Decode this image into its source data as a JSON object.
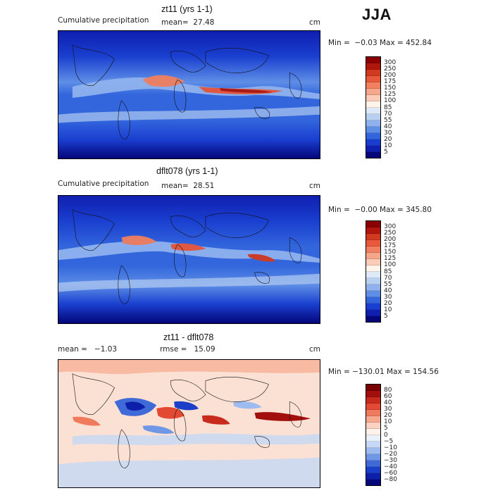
{
  "season": "JJA",
  "panels": [
    {
      "title": "zt11 (yrs 1-1)",
      "subtitle": "Cumulative precipitation",
      "stat1": "mean=  27.48",
      "stat2": "",
      "unit": "cm",
      "minmax": "Min =  −0.03 Max = 452.84",
      "colorbar": {
        "labels": [
          "300",
          "250",
          "200",
          "175",
          "150",
          "125",
          "100",
          "85",
          "70",
          "55",
          "40",
          "30",
          "20",
          "10",
          "5"
        ],
        "colors": [
          "#8b0000",
          "#b0170c",
          "#d23a20",
          "#e8583a",
          "#f08060",
          "#f6a68a",
          "#fbcdb8",
          "#fff4ea",
          "#dde8f8",
          "#b8d0f2",
          "#8fb2ee",
          "#5e8ee6",
          "#3366dd",
          "#1a3fd0",
          "#0f1fb0",
          "#05067a"
        ]
      }
    },
    {
      "title": "dflt078 (yrs 1-1)",
      "subtitle": "Cumulative precipitation",
      "stat1": "mean=  28.51",
      "stat2": "",
      "unit": "cm",
      "minmax": "Min =  −0.00 Max = 345.80",
      "colorbar": {
        "labels": [
          "300",
          "250",
          "200",
          "175",
          "150",
          "125",
          "100",
          "85",
          "70",
          "55",
          "40",
          "30",
          "20",
          "10",
          "5"
        ],
        "colors": [
          "#8b0000",
          "#b0170c",
          "#d23a20",
          "#e8583a",
          "#f08060",
          "#f6a68a",
          "#fbcdb8",
          "#fff4ea",
          "#dde8f8",
          "#b8d0f2",
          "#8fb2ee",
          "#5e8ee6",
          "#3366dd",
          "#1a3fd0",
          "#0f1fb0",
          "#05067a"
        ]
      }
    },
    {
      "title": "zt11 - dflt078",
      "subtitle": "",
      "stat1": "mean =   −1.03",
      "stat2": "rmse =   15.09",
      "unit": "cm",
      "minmax": "Min = −130.01 Max = 154.56",
      "colorbar": {
        "labels": [
          "80",
          "60",
          "40",
          "30",
          "20",
          "10",
          "5",
          "0",
          "−5",
          "−10",
          "−20",
          "−30",
          "−40",
          "−60",
          "−80"
        ],
        "colors": [
          "#7a0000",
          "#a30f0c",
          "#c82a1c",
          "#e24a34",
          "#ef7a5c",
          "#f7a98e",
          "#fcd2c2",
          "#fff2ea",
          "#e8f0fc",
          "#c6d8f5",
          "#9dbbef",
          "#6f97e6",
          "#3f6ad8",
          "#1c3fca",
          "#0d1fa8",
          "#04087a"
        ]
      }
    }
  ]
}
